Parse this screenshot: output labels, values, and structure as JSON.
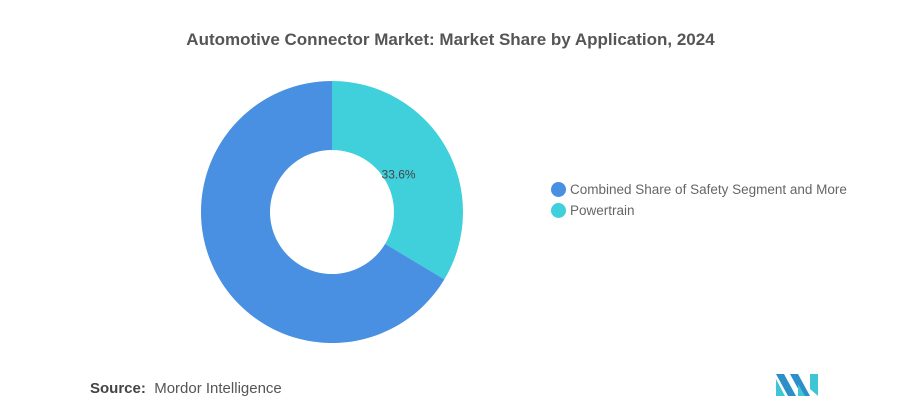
{
  "chart_data": {
    "type": "pie",
    "title": "Automotive Connector Market: Market Share by Application, 2024",
    "series": [
      {
        "name": "Powertrain",
        "value": 33.6,
        "label": "33.6%",
        "color": "#40d0dc"
      },
      {
        "name": "Combined Share of Safety Segment and More",
        "value": 66.4,
        "label": "",
        "color": "#4a90e2"
      }
    ],
    "legend": [
      "Combined Share of Safety Segment and More",
      "Powertrain"
    ],
    "legend_placement": "right",
    "donut": true
  },
  "source": {
    "label": "Source:",
    "value": "Mordor Intelligence"
  }
}
